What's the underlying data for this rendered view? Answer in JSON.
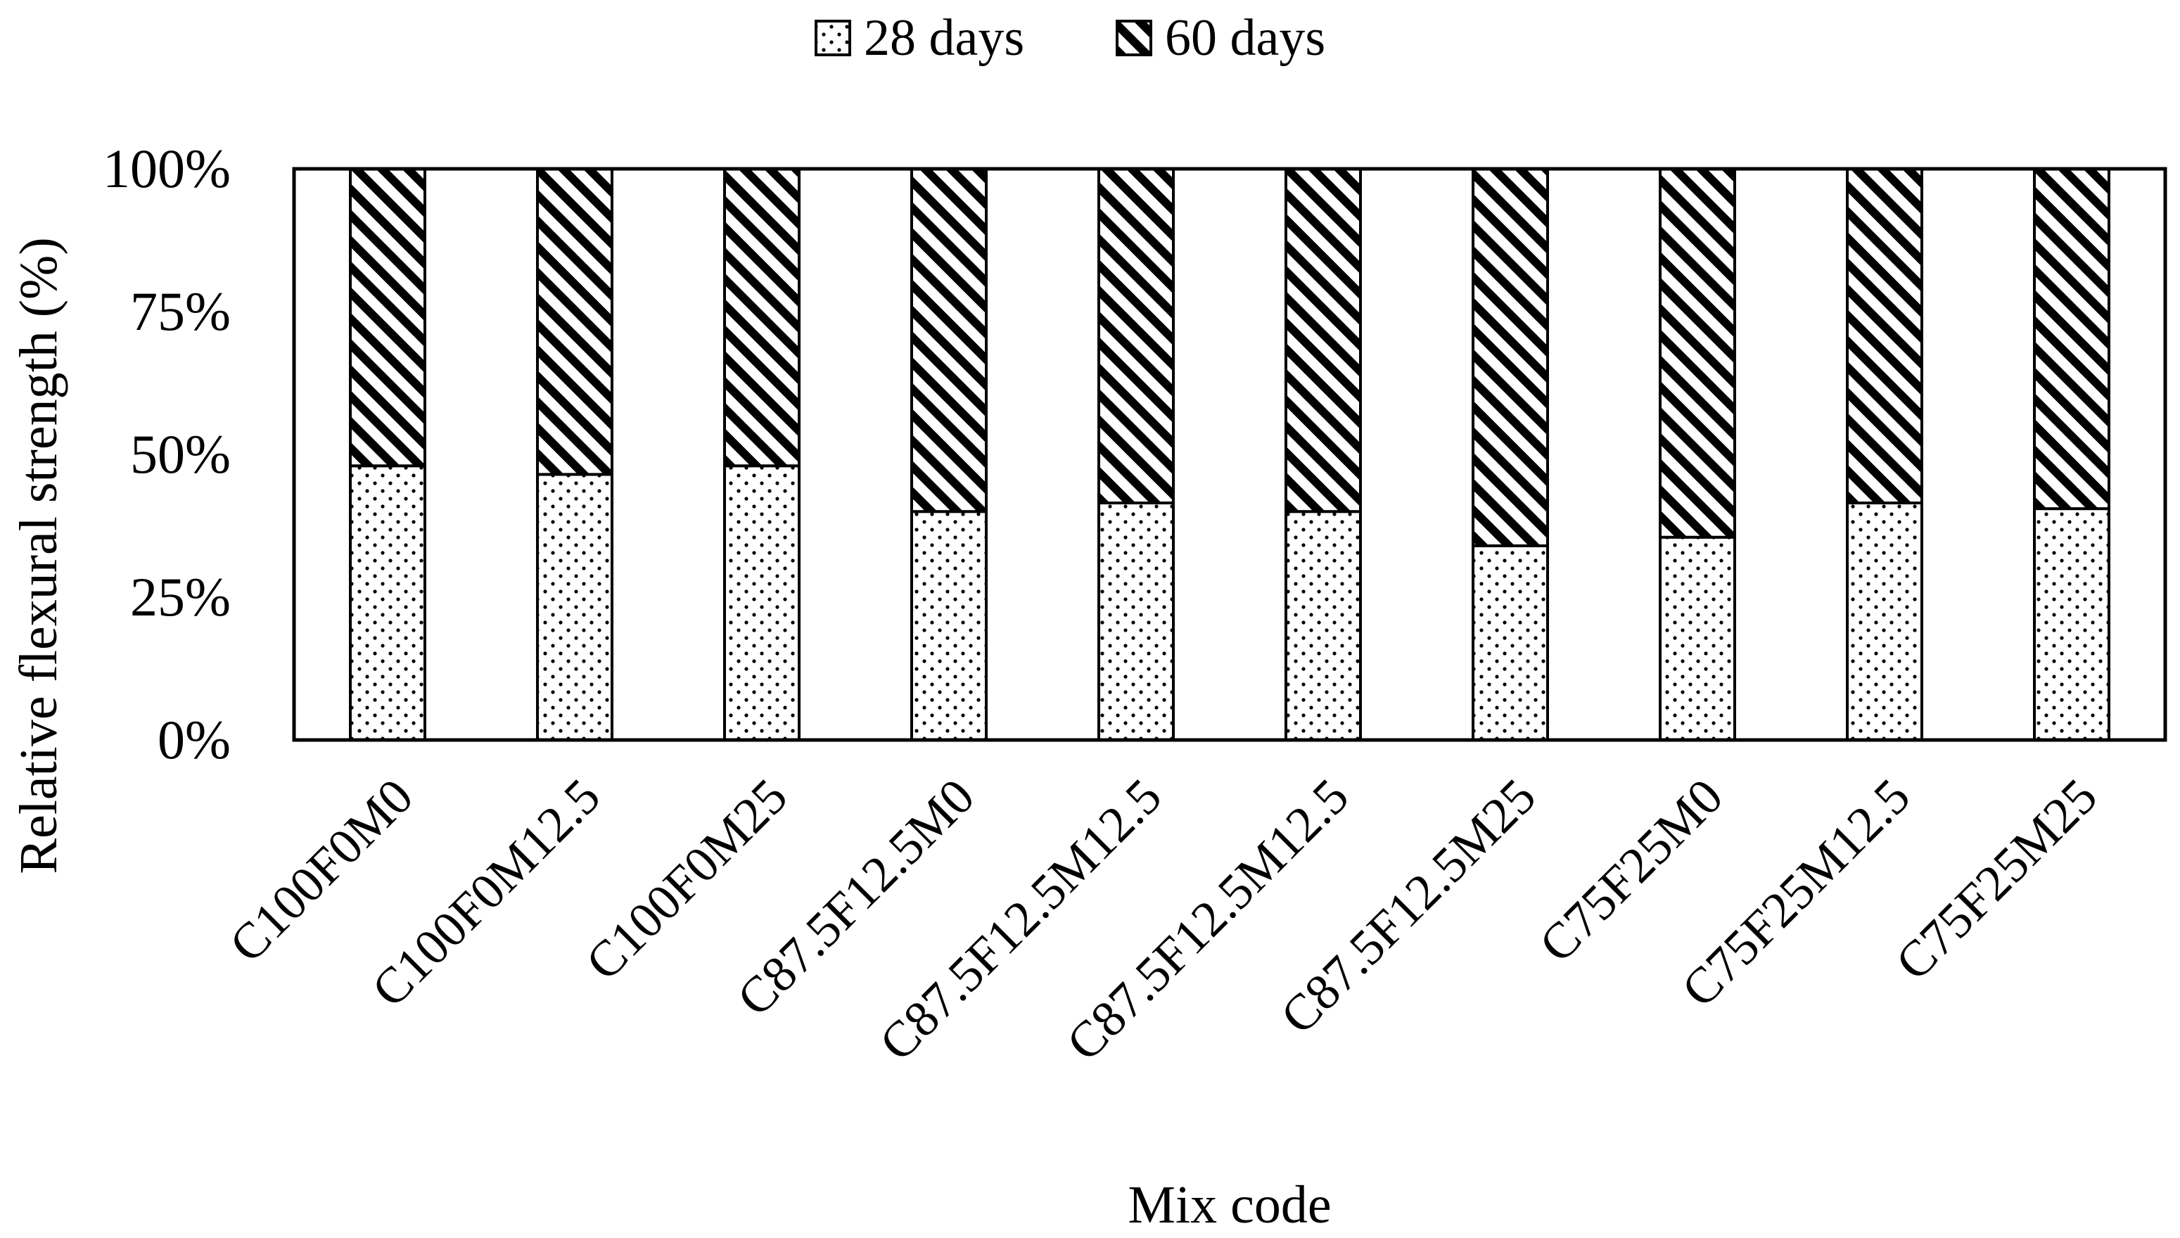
{
  "chart_data": {
    "type": "bar",
    "stacked": true,
    "percent_stacked": true,
    "title": "",
    "xlabel": "Mix code",
    "ylabel": "Relative flexural strength (%)",
    "ylim": [
      0,
      100
    ],
    "yticks": [
      0,
      25,
      50,
      75,
      100
    ],
    "ytick_labels": [
      "0%",
      "25%",
      "50%",
      "75%",
      "100%"
    ],
    "grid": false,
    "legend_position": "top-center",
    "categories": [
      "C100F0M0",
      "C100F0M12.5",
      "C100F0M25",
      "C87.5F12.5M0",
      "C87.5F12.5M12.5",
      "C87.5F12.5M12.5",
      "C87.5F12.5M25",
      "C75F25M0",
      "C75F25M12.5",
      "C75F25M25"
    ],
    "series": [
      {
        "name": "28 days",
        "pattern": "dots",
        "values": [
          48,
          46.5,
          48,
          40,
          41.5,
          40,
          34,
          35.5,
          41.5,
          40.5
        ]
      },
      {
        "name": "60 days",
        "pattern": "diagonal-hatch",
        "values": [
          52,
          53.5,
          52,
          60,
          58.5,
          60,
          66,
          64.5,
          58.5,
          59.5
        ]
      }
    ],
    "colors": {
      "fill": "#ffffff",
      "stroke": "#000000"
    }
  }
}
